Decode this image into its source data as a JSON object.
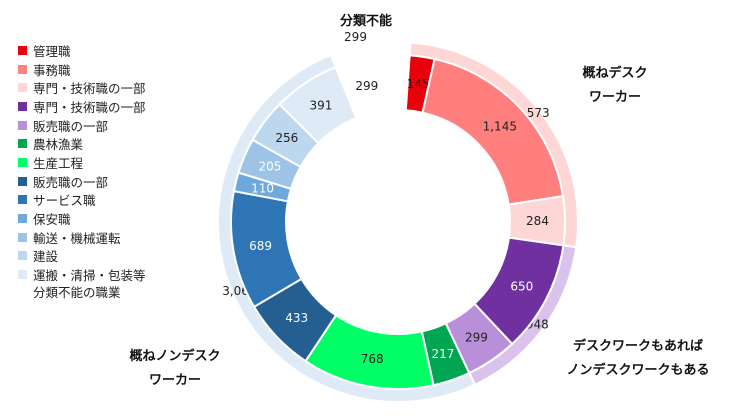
{
  "chart_data": {
    "type": "pie",
    "variant": "nested-donut",
    "title": "分類不能",
    "inner_ring": {
      "slices": [
        {
          "name": "管理職",
          "value": 145,
          "label": "145",
          "color": "#e8000b"
        },
        {
          "name": "事務職",
          "value": 1145,
          "label": "1,145",
          "color": "#ff7f7f"
        },
        {
          "name": "専門・技術職の一部",
          "value": 284,
          "label": "284",
          "color": "#ffd6d6"
        },
        {
          "name": "専門・技術職の一部",
          "value": 650,
          "label": "650",
          "color": "#7030a0"
        },
        {
          "name": "販売職の一部",
          "value": 299,
          "label": "299",
          "color": "#b88fd8"
        },
        {
          "name": "農林漁業",
          "value": 217,
          "label": "217",
          "color": "#00a651"
        },
        {
          "name": "生産工程",
          "value": 768,
          "label": "768",
          "color": "#00ff66"
        },
        {
          "name": "販売職の一部",
          "value": 433,
          "label": "433",
          "color": "#255e91"
        },
        {
          "name": "サービス職",
          "value": 689,
          "label": "689",
          "color": "#2e75b6"
        },
        {
          "name": "保安職",
          "value": 110,
          "label": "110",
          "color": "#6fa8dc"
        },
        {
          "name": "輸送・機械運転",
          "value": 205,
          "label": "205",
          "color": "#9dc3e6"
        },
        {
          "name": "建設",
          "value": 256,
          "label": "256",
          "color": "#bdd7ee"
        },
        {
          "name": "運搬・清掃・包装等",
          "value": 391,
          "label": "391",
          "color": "#deebf7"
        },
        {
          "name": "分類不能の職業",
          "value": 299,
          "label": "299",
          "color": "#ffffff"
        }
      ]
    },
    "outer_ring": {
      "slices": [
        {
          "name": "概ねデスクワーカー",
          "value": 1573,
          "label": "1,573",
          "color": "#ffd6d6"
        },
        {
          "name": "デスクワークもあればノンデスクワークもある",
          "value": 948,
          "label": "948",
          "color": "#d9c3ec"
        },
        {
          "name": "概ねノンデスクワーカー",
          "value": 3068,
          "label": "3,068",
          "color": "#deebf7"
        },
        {
          "name": "分類不能",
          "value": 299,
          "label": "299",
          "color": "#ffffff"
        }
      ]
    },
    "legend": {
      "position": "left",
      "entries": [
        {
          "label": "管理職",
          "color": "#e8000b"
        },
        {
          "label": "事務職",
          "color": "#ff7f7f"
        },
        {
          "label": "専門・技術職の一部",
          "color": "#ffd6d6"
        },
        {
          "label": "専門・技術職の一部",
          "color": "#7030a0"
        },
        {
          "label": "販売職の一部",
          "color": "#b88fd8"
        },
        {
          "label": "農林漁業",
          "color": "#00a651"
        },
        {
          "label": "生産工程",
          "color": "#00ff66"
        },
        {
          "label": "販売職の一部",
          "color": "#255e91"
        },
        {
          "label": "サービス職",
          "color": "#2e75b6"
        },
        {
          "label": "保安職",
          "color": "#6fa8dc"
        },
        {
          "label": "輸送・機械運転",
          "color": "#9dc3e6"
        },
        {
          "label": "建設",
          "color": "#bdd7ee"
        },
        {
          "label": "運搬・清掃・包装等",
          "color": "#deebf7"
        }
      ],
      "extra_line": "分類不能の職業"
    },
    "group_labels": {
      "desk_line1": "概ねデスク",
      "desk_line2": "ワーカー",
      "mixed_line1": "デスクワークもあれば",
      "mixed_line2": "ノンデスクワークもある",
      "nondesk_line1": "概ねノンデスク",
      "nondesk_line2": "ワーカー"
    }
  }
}
